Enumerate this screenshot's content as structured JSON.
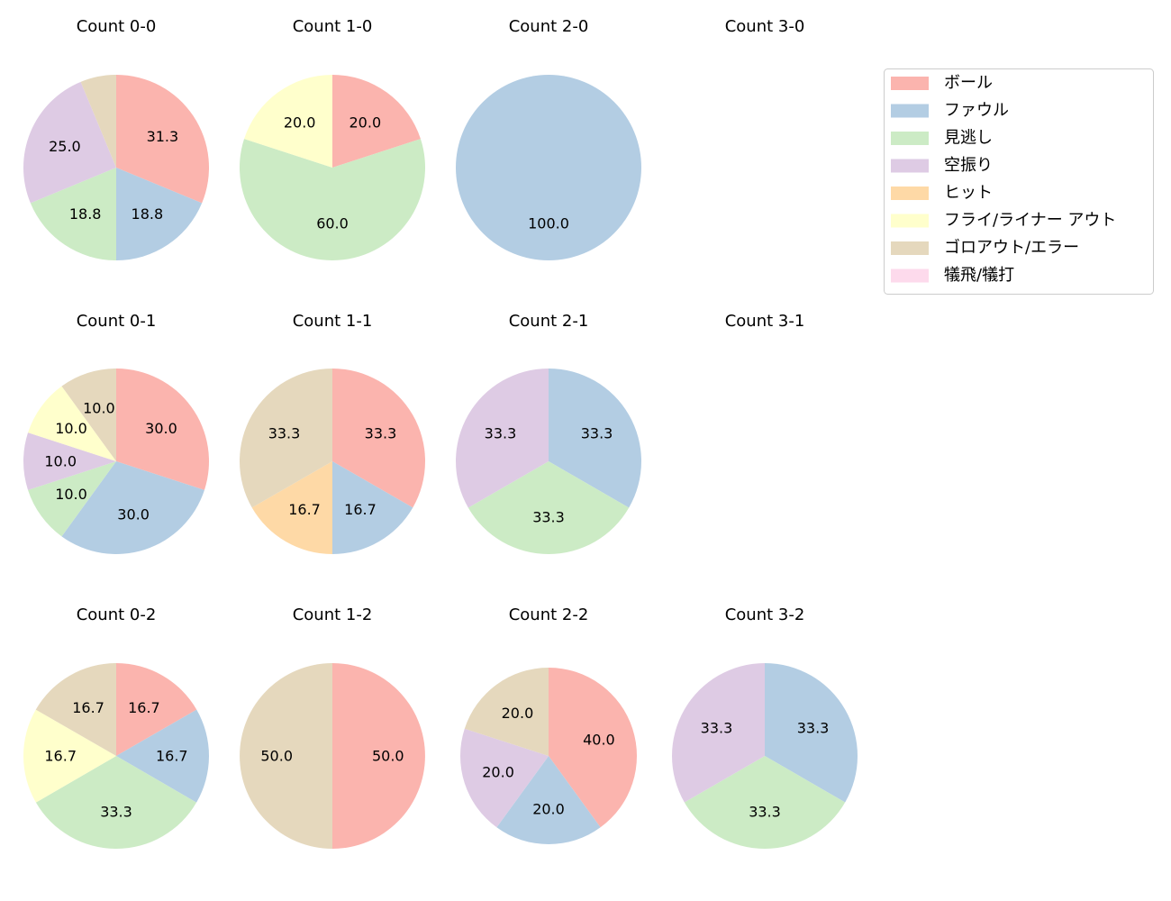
{
  "chart_data": [
    {
      "type": "pie",
      "title": "Count 0-0",
      "categories": [
        "ボール",
        "ファウル",
        "見逃し",
        "空振り",
        "ゴロアウト/エラー"
      ],
      "values": [
        31.25,
        18.75,
        18.75,
        25.0,
        6.25
      ]
    },
    {
      "type": "pie",
      "title": "Count 1-0",
      "categories": [
        "ボール",
        "見逃し",
        "フライ/ライナー アウト"
      ],
      "values": [
        20.0,
        60.0,
        20.0
      ]
    },
    {
      "type": "pie",
      "title": "Count 2-0",
      "categories": [
        "ファウル"
      ],
      "values": [
        100.0
      ]
    },
    {
      "type": "pie",
      "title": "Count 3-0",
      "categories": [],
      "values": []
    },
    {
      "type": "pie",
      "title": "Count 0-1",
      "categories": [
        "ボール",
        "ファウル",
        "見逃し",
        "空振り",
        "フライ/ライナー アウト",
        "ゴロアウト/エラー"
      ],
      "values": [
        30.0,
        30.0,
        10.0,
        10.0,
        10.0,
        10.0
      ]
    },
    {
      "type": "pie",
      "title": "Count 1-1",
      "categories": [
        "ボール",
        "ファウル",
        "ヒット",
        "ゴロアウト/エラー"
      ],
      "values": [
        33.3,
        16.7,
        16.7,
        33.3
      ]
    },
    {
      "type": "pie",
      "title": "Count 2-1",
      "categories": [
        "ファウル",
        "見逃し",
        "空振り"
      ],
      "values": [
        33.3,
        33.3,
        33.3
      ]
    },
    {
      "type": "pie",
      "title": "Count 3-1",
      "categories": [],
      "values": []
    },
    {
      "type": "pie",
      "title": "Count 0-2",
      "categories": [
        "ボール",
        "ファウル",
        "見逃し",
        "フライ/ライナー アウト",
        "ゴロアウト/エラー"
      ],
      "values": [
        16.7,
        16.7,
        33.3,
        16.7,
        16.7
      ]
    },
    {
      "type": "pie",
      "title": "Count 1-2",
      "categories": [
        "ボール",
        "ゴロアウト/エラー"
      ],
      "values": [
        50.0,
        50.0
      ]
    },
    {
      "type": "pie",
      "title": "Count 2-2",
      "categories": [
        "ボール",
        "ファウル",
        "空振り",
        "ゴロアウト/エラー"
      ],
      "values": [
        40.0,
        20.0,
        20.0,
        20.0
      ]
    },
    {
      "type": "pie",
      "title": "Count 3-2",
      "categories": [
        "ファウル",
        "見逃し",
        "空振り"
      ],
      "values": [
        33.3,
        33.3,
        33.3
      ]
    }
  ],
  "legend": {
    "position": "top-right",
    "items": [
      {
        "label": "ボール",
        "color": "#fbb4ae"
      },
      {
        "label": "ファウル",
        "color": "#b3cde3"
      },
      {
        "label": "見逃し",
        "color": "#ccebc5"
      },
      {
        "label": "空振り",
        "color": "#decbe4"
      },
      {
        "label": "ヒット",
        "color": "#fed9a6"
      },
      {
        "label": "フライ/ライナー アウト",
        "color": "#ffffcc"
      },
      {
        "label": "ゴロアウト/エラー",
        "color": "#e5d8bd"
      },
      {
        "label": "犠飛/犠打",
        "color": "#fddaec"
      }
    ]
  }
}
